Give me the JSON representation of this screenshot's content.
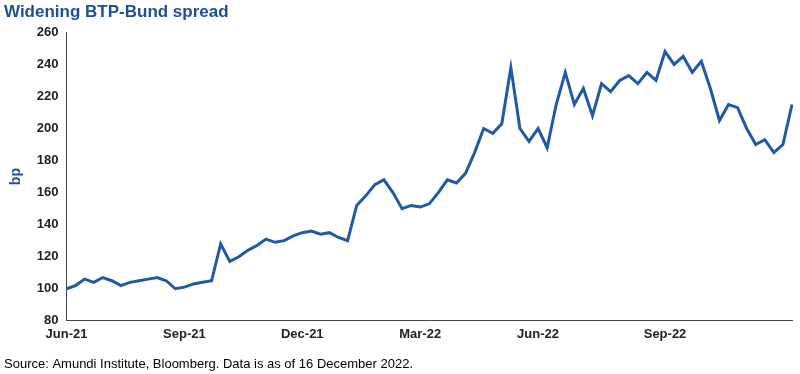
{
  "chart_data": {
    "type": "line",
    "title": "Widening BTP-Bund spread",
    "source": "Source: Amundi Institute, Bloomberg. Data is as of 16 December 2022.",
    "y_label": "bp",
    "categories": [
      "Jun-21",
      null,
      null,
      null,
      null,
      null,
      null,
      null,
      null,
      null,
      null,
      null,
      null,
      "Sep-21",
      null,
      null,
      null,
      null,
      null,
      null,
      null,
      null,
      null,
      null,
      null,
      null,
      "Dec-21",
      null,
      null,
      null,
      null,
      null,
      null,
      null,
      null,
      null,
      null,
      null,
      null,
      "Mar-22",
      null,
      null,
      null,
      null,
      null,
      null,
      null,
      null,
      null,
      null,
      null,
      null,
      "Jun-22",
      null,
      null,
      null,
      null,
      null,
      null,
      null,
      null,
      null,
      null,
      null,
      null,
      null,
      "Sep-22",
      null,
      null,
      null,
      null,
      null,
      null,
      null,
      null,
      null,
      null,
      null,
      null,
      null,
      null
    ],
    "values": [
      100,
      102,
      106,
      104,
      107,
      105,
      102,
      104,
      105,
      106,
      107,
      105,
      100,
      101,
      103,
      104,
      105,
      128,
      117,
      120,
      124,
      127,
      131,
      129,
      130,
      133,
      135,
      136,
      134,
      135,
      132,
      130,
      152,
      158,
      165,
      168,
      160,
      150,
      152,
      151,
      153,
      160,
      168,
      166,
      172,
      185,
      200,
      197,
      203,
      238,
      200,
      192,
      200,
      188,
      215,
      235,
      215,
      225,
      208,
      228,
      223,
      230,
      233,
      228,
      235,
      230,
      248,
      240,
      245,
      235,
      242,
      225,
      205,
      215,
      213,
      200,
      190,
      193,
      185,
      190,
      215
    ],
    "color": "#1f5aa6",
    "ylim": [
      80,
      260
    ],
    "yticks": [
      80,
      100,
      120,
      140,
      160,
      180,
      200,
      220,
      240,
      260
    ],
    "grid": false
  }
}
